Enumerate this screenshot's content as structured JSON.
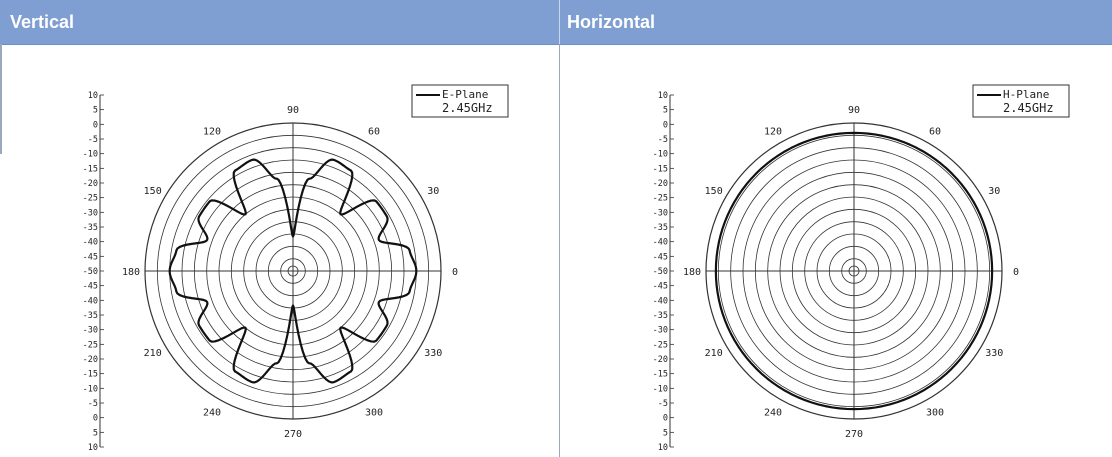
{
  "header": {
    "left_title": "Vertical",
    "right_title": "Horizontal"
  },
  "colors": {
    "header_bg": "#7f9fd2",
    "header_text": "#ffffff",
    "grid": "#333333",
    "trace": "#111111"
  },
  "chart_data": [
    {
      "type": "polar",
      "legend": [
        "E-Plane",
        "2.45GHz"
      ],
      "legend_position": "top-right",
      "angle_labels": [
        "90",
        "60",
        "30",
        "0",
        "330",
        "300",
        "270",
        "240",
        "210",
        "180",
        "150",
        "120"
      ],
      "radial_scale_labels": [
        "10",
        "5",
        "0",
        "-5",
        "-10",
        "-15",
        "-20",
        "-25",
        "-30",
        "-35",
        "-40",
        "-45",
        "-50",
        "-45",
        "-40",
        "-35",
        "-30",
        "-25",
        "-20",
        "-15",
        "-10",
        "-5",
        "0",
        "5",
        "10"
      ],
      "r_range_dB": [
        -50,
        10
      ],
      "series": [
        {
          "name": "E-Plane",
          "angles_deg": [
            0,
            10,
            20,
            30,
            40,
            50,
            60,
            70,
            80,
            90,
            100,
            110,
            120,
            130,
            140,
            150,
            160,
            170,
            180,
            190,
            200,
            210,
            220,
            230,
            240,
            250,
            260,
            270,
            280,
            290,
            300,
            310,
            320,
            330,
            340,
            350,
            360
          ],
          "values_dB": [
            0,
            -2,
            -13,
            -6,
            -6,
            -20,
            -3,
            -2,
            -12,
            -36,
            -12,
            -2,
            -3,
            -20,
            -6,
            -6,
            -13,
            -2,
            0,
            -2,
            -13,
            -6,
            -6,
            -20,
            -3,
            -2,
            -12,
            -36,
            -12,
            -2,
            -3,
            -20,
            -6,
            -6,
            -13,
            -2,
            0
          ]
        }
      ]
    },
    {
      "type": "polar",
      "legend": [
        "H-Plane",
        "2.45GHz"
      ],
      "legend_position": "top-right",
      "angle_labels": [
        "90",
        "60",
        "30",
        "0",
        "330",
        "300",
        "270",
        "240",
        "210",
        "180",
        "150",
        "120"
      ],
      "radial_scale_labels": [
        "10",
        "5",
        "0",
        "-5",
        "-10",
        "-15",
        "-20",
        "-25",
        "-30",
        "-35",
        "-40",
        "-45",
        "-50",
        "-45",
        "-40",
        "-35",
        "-30",
        "-25",
        "-20",
        "-15",
        "-10",
        "-5",
        "0",
        "5",
        "10"
      ],
      "r_range_dB": [
        -50,
        10
      ],
      "series": [
        {
          "name": "H-Plane",
          "angles_deg": [
            0,
            30,
            60,
            90,
            120,
            150,
            180,
            210,
            240,
            270,
            300,
            330,
            360
          ],
          "values_dB": [
            6,
            6,
            6,
            6,
            6,
            6,
            6,
            6,
            6,
            6,
            6,
            6,
            6
          ]
        }
      ]
    }
  ]
}
